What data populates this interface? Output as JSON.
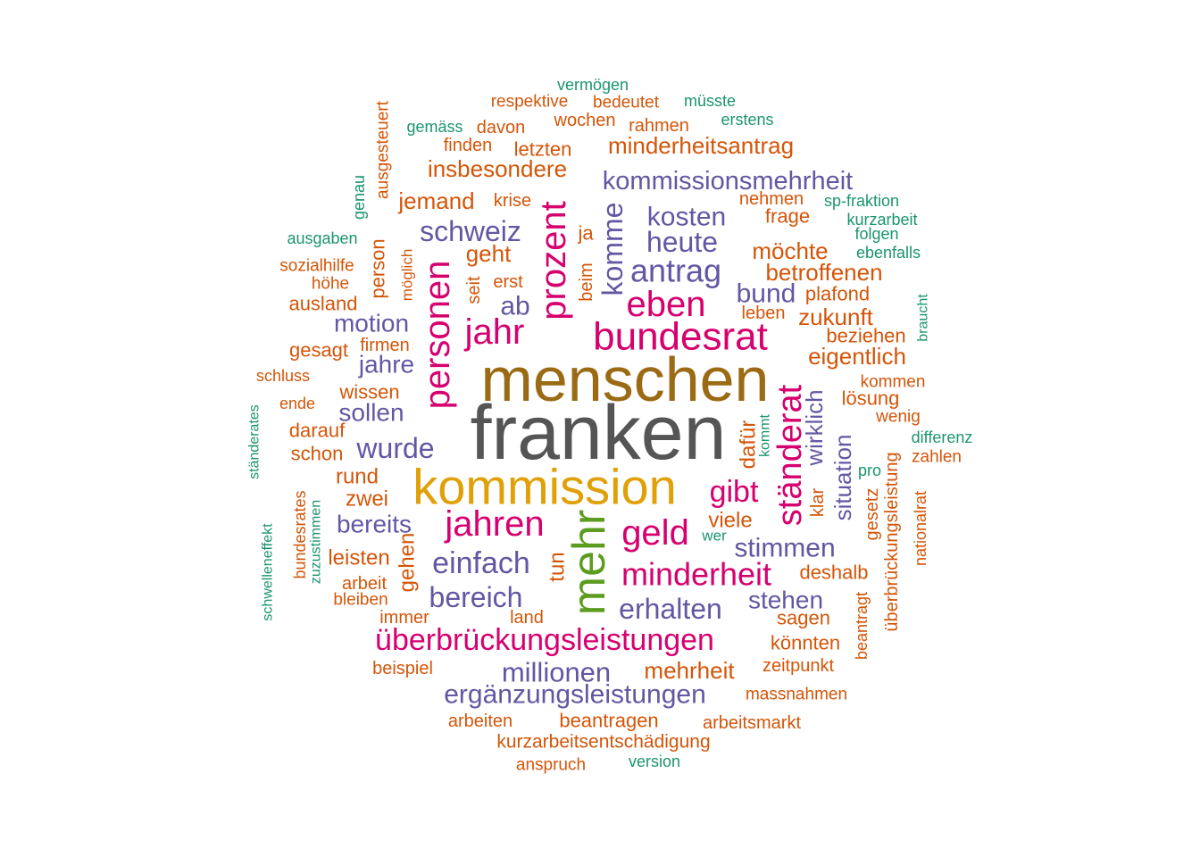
{
  "palette": {
    "grey": "#555555",
    "brown": "#9a6b14",
    "gold": "#e0a008",
    "magenta": "#d6006e",
    "green": "#5c9c1e",
    "purple": "#6357a3",
    "orange": "#d45508",
    "teal": "#1b9470"
  },
  "words": [
    {
      "text": "franken",
      "color": "grey"
    },
    {
      "text": "menschen",
      "color": "brown"
    },
    {
      "text": "kommission",
      "color": "gold"
    },
    {
      "text": "mehr",
      "color": "green"
    },
    {
      "text": "bundesrat",
      "color": "magenta"
    },
    {
      "text": "personen",
      "color": "magenta"
    },
    {
      "text": "prozent",
      "color": "magenta"
    },
    {
      "text": "jahren",
      "color": "magenta"
    },
    {
      "text": "geld",
      "color": "magenta"
    },
    {
      "text": "eben",
      "color": "magenta"
    },
    {
      "text": "jahr",
      "color": "magenta"
    },
    {
      "text": "ständerat",
      "color": "magenta"
    },
    {
      "text": "minderheit",
      "color": "magenta"
    },
    {
      "text": "überbrückungsleistungen",
      "color": "magenta"
    },
    {
      "text": "gibt",
      "color": "magenta"
    },
    {
      "text": "antrag",
      "color": "purple"
    },
    {
      "text": "kommissionsmehrheit",
      "color": "purple"
    },
    {
      "text": "einfach",
      "color": "purple"
    },
    {
      "text": "bereich",
      "color": "purple"
    },
    {
      "text": "erhalten",
      "color": "purple"
    },
    {
      "text": "millionen",
      "color": "purple"
    },
    {
      "text": "ergänzungsleistungen",
      "color": "purple"
    },
    {
      "text": "wurde",
      "color": "purple"
    },
    {
      "text": "heute",
      "color": "purple"
    },
    {
      "text": "kosten",
      "color": "purple"
    },
    {
      "text": "schweiz",
      "color": "purple"
    },
    {
      "text": "komme",
      "color": "purple"
    },
    {
      "text": "bund",
      "color": "purple"
    },
    {
      "text": "motion",
      "color": "purple"
    },
    {
      "text": "ab",
      "color": "purple"
    },
    {
      "text": "stimmen",
      "color": "purple"
    },
    {
      "text": "stehen",
      "color": "purple"
    },
    {
      "text": "bereits",
      "color": "purple"
    },
    {
      "text": "sollen",
      "color": "purple"
    },
    {
      "text": "jahre",
      "color": "purple"
    },
    {
      "text": "wirklich",
      "color": "purple"
    },
    {
      "text": "situation",
      "color": "purple"
    },
    {
      "text": "minderheitsantrag",
      "color": "orange"
    },
    {
      "text": "insbesondere",
      "color": "orange"
    },
    {
      "text": "jemand",
      "color": "orange"
    },
    {
      "text": "geht",
      "color": "orange"
    },
    {
      "text": "möchte",
      "color": "orange"
    },
    {
      "text": "betroffenen",
      "color": "orange"
    },
    {
      "text": "zukunft",
      "color": "orange"
    },
    {
      "text": "eigentlich",
      "color": "orange"
    },
    {
      "text": "frage",
      "color": "orange"
    },
    {
      "text": "mehrheit",
      "color": "orange"
    },
    {
      "text": "beantragen",
      "color": "orange"
    },
    {
      "text": "kurzarbeitsentschädigung",
      "color": "orange"
    },
    {
      "text": "deshalb",
      "color": "orange"
    },
    {
      "text": "viele",
      "color": "orange"
    },
    {
      "text": "leisten",
      "color": "orange"
    },
    {
      "text": "rund",
      "color": "orange"
    },
    {
      "text": "zwei",
      "color": "orange"
    },
    {
      "text": "tun",
      "color": "orange"
    },
    {
      "text": "gehen",
      "color": "orange"
    },
    {
      "text": "sagen",
      "color": "orange"
    },
    {
      "text": "könnten",
      "color": "orange"
    },
    {
      "text": "zeitpunkt",
      "color": "orange"
    },
    {
      "text": "dafür",
      "color": "orange"
    },
    {
      "text": "klar",
      "color": "orange"
    },
    {
      "text": "lösung",
      "color": "orange"
    },
    {
      "text": "beziehen",
      "color": "orange"
    },
    {
      "text": "plafond",
      "color": "orange"
    },
    {
      "text": "leben",
      "color": "orange"
    },
    {
      "text": "nehmen",
      "color": "orange"
    },
    {
      "text": "ja",
      "color": "orange"
    },
    {
      "text": "beim",
      "color": "orange"
    },
    {
      "text": "seit",
      "color": "orange"
    },
    {
      "text": "erst",
      "color": "orange"
    },
    {
      "text": "krise",
      "color": "orange"
    },
    {
      "text": "letzten",
      "color": "orange"
    },
    {
      "text": "finden",
      "color": "orange"
    },
    {
      "text": "davon",
      "color": "orange"
    },
    {
      "text": "wochen",
      "color": "orange"
    },
    {
      "text": "rahmen",
      "color": "orange"
    },
    {
      "text": "respektive",
      "color": "orange"
    },
    {
      "text": "bedeutet",
      "color": "orange"
    },
    {
      "text": "ausgesteuert",
      "color": "orange"
    },
    {
      "text": "person",
      "color": "orange"
    },
    {
      "text": "möglich",
      "color": "orange"
    },
    {
      "text": "sozialhilfe",
      "color": "orange"
    },
    {
      "text": "höhe",
      "color": "orange"
    },
    {
      "text": "ausland",
      "color": "orange"
    },
    {
      "text": "gesagt",
      "color": "orange"
    },
    {
      "text": "firmen",
      "color": "orange"
    },
    {
      "text": "schluss",
      "color": "orange"
    },
    {
      "text": "wissen",
      "color": "orange"
    },
    {
      "text": "ende",
      "color": "orange"
    },
    {
      "text": "darauf",
      "color": "orange"
    },
    {
      "text": "schon",
      "color": "orange"
    },
    {
      "text": "bundesrates",
      "color": "orange"
    },
    {
      "text": "arbeit",
      "color": "orange"
    },
    {
      "text": "bleiben",
      "color": "orange"
    },
    {
      "text": "immer",
      "color": "orange"
    },
    {
      "text": "land",
      "color": "orange"
    },
    {
      "text": "beispiel",
      "color": "orange"
    },
    {
      "text": "arbeiten",
      "color": "orange"
    },
    {
      "text": "anspruch",
      "color": "orange"
    },
    {
      "text": "arbeitsmarkt",
      "color": "orange"
    },
    {
      "text": "massnahmen",
      "color": "orange"
    },
    {
      "text": "beantragt",
      "color": "orange"
    },
    {
      "text": "überbrückungsleistung",
      "color": "orange"
    },
    {
      "text": "gesetz",
      "color": "orange"
    },
    {
      "text": "nationalrat",
      "color": "orange"
    },
    {
      "text": "zahlen",
      "color": "orange"
    },
    {
      "text": "wenig",
      "color": "orange"
    },
    {
      "text": "kommen",
      "color": "orange"
    },
    {
      "text": "vermögen",
      "color": "teal"
    },
    {
      "text": "müsste",
      "color": "teal"
    },
    {
      "text": "erstens",
      "color": "teal"
    },
    {
      "text": "gemäss",
      "color": "teal"
    },
    {
      "text": "genau",
      "color": "teal"
    },
    {
      "text": "ausgaben",
      "color": "teal"
    },
    {
      "text": "sp-fraktion",
      "color": "teal"
    },
    {
      "text": "kurzarbeit",
      "color": "teal"
    },
    {
      "text": "folgen",
      "color": "teal"
    },
    {
      "text": "ebenfalls",
      "color": "teal"
    },
    {
      "text": "braucht",
      "color": "teal"
    },
    {
      "text": "differenz",
      "color": "teal"
    },
    {
      "text": "pro",
      "color": "teal"
    },
    {
      "text": "kommt",
      "color": "teal"
    },
    {
      "text": "wer",
      "color": "teal"
    },
    {
      "text": "ständerates",
      "color": "teal"
    },
    {
      "text": "schwelleneffekt",
      "color": "teal"
    },
    {
      "text": "zuzustimmen",
      "color": "teal"
    },
    {
      "text": "version",
      "color": "teal"
    }
  ]
}
